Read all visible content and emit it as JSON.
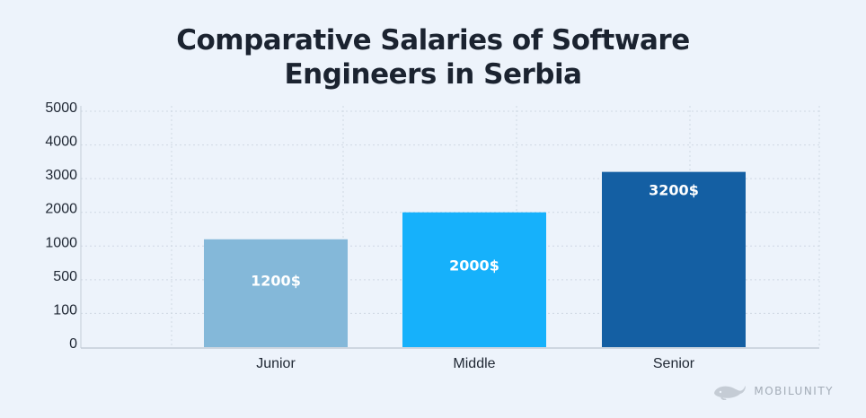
{
  "chart_data": {
    "type": "bar",
    "title": "Comparative Salaries of Software Engineers in Serbia",
    "title_lines": [
      "Comparative Salaries of Software",
      "Engineers in Serbia"
    ],
    "categories": [
      "Junior",
      "Middle",
      "Senior"
    ],
    "values": [
      1200,
      2000,
      3200
    ],
    "data_labels": [
      "1200$",
      "2000$",
      "3200$"
    ],
    "y_ticks": [
      "0",
      "100",
      "500",
      "1000",
      "2000",
      "3000",
      "4000",
      "5000"
    ],
    "y_scale": "non-linear (ticks 0, 100, 500, 1000, 2000, 3000, 4000, 5000)",
    "ylim": [
      0,
      5000
    ],
    "grid": true,
    "colors": [
      "#84b8d9",
      "#16b1fb",
      "#145fa3"
    ]
  },
  "watermark": {
    "text": "MOBILUNITY",
    "icon": "whale-icon"
  }
}
